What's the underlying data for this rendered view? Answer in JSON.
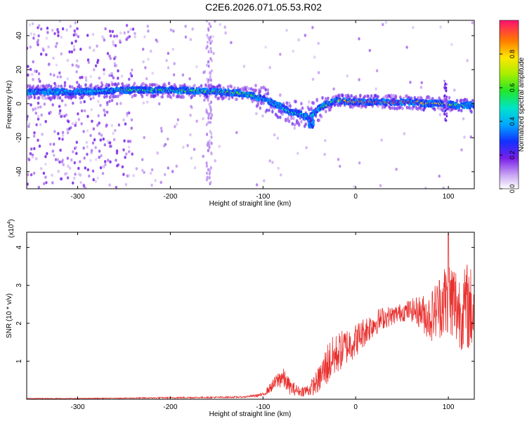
{
  "title": "C2E6.2026.071.05.53.R02",
  "chart_data": [
    {
      "type": "heatmap",
      "xlabel": "Height of straight line (km)",
      "ylabel": "Frequency (Hz)",
      "xlim": [
        -355,
        128
      ],
      "ylim": [
        -50,
        49
      ],
      "xticks": [
        -300,
        -200,
        -100,
        0,
        100
      ],
      "yticks": [
        -40,
        -20,
        0,
        20,
        40
      ],
      "colorbar": {
        "label": "Normalized spectral amplitude",
        "range": [
          0,
          1
        ],
        "ticks": [
          0.0,
          0.2,
          0.4,
          0.6,
          0.8
        ],
        "tick_labels": [
          "0.0",
          "0.2",
          "0.4",
          "0.6",
          "0.8"
        ]
      },
      "ridge_frequency": {
        "x": [
          -350,
          -300,
          -250,
          -200,
          -150,
          -120,
          -100,
          -80,
          -70,
          -60,
          -50,
          -40,
          -30,
          -20,
          0,
          20,
          40,
          60,
          80,
          100,
          110,
          128
        ],
        "y": [
          7,
          7,
          8,
          8,
          7,
          6,
          3,
          -2,
          -5,
          -6,
          -8,
          -3,
          0,
          2,
          1,
          1,
          1,
          1,
          0,
          0,
          -1,
          -1
        ]
      },
      "ridge_amplitude": {
        "x": [
          -350,
          -300,
          -250,
          -200,
          -150,
          -120,
          -100,
          -80,
          -70,
          -60,
          -50,
          -40,
          -30,
          -20,
          0,
          20,
          40,
          60,
          80,
          100,
          110,
          128
        ],
        "y": [
          0.45,
          0.45,
          0.55,
          0.58,
          0.6,
          0.6,
          0.45,
          0.5,
          0.5,
          0.5,
          0.45,
          0.55,
          0.6,
          0.75,
          0.9,
          0.92,
          0.95,
          0.9,
          0.82,
          0.7,
          0.55,
          0.5
        ]
      }
    },
    {
      "type": "line",
      "xlabel": "Height of straight line (km)",
      "ylabel": "SNR (10 * v/v)",
      "multiplier_label": "(x10",
      "multiplier_exp": "4",
      "multiplier_close": ")",
      "xlim": [
        -355,
        128
      ],
      "ylim": [
        0,
        4.4
      ],
      "xticks": [
        -300,
        -200,
        -100,
        0,
        100
      ],
      "yticks": [
        1,
        2,
        3,
        4
      ],
      "series": [
        {
          "name": "SNR",
          "color": "#e8302e",
          "x": [
            -355,
            -300,
            -250,
            -200,
            -150,
            -120,
            -100,
            -90,
            -80,
            -70,
            -60,
            -50,
            -40,
            -30,
            -20,
            -10,
            0,
            10,
            20,
            30,
            40,
            50,
            60,
            70,
            80,
            90,
            95,
            100,
            105,
            110,
            115,
            120,
            128
          ],
          "y": [
            0.02,
            0.02,
            0.03,
            0.04,
            0.05,
            0.06,
            0.12,
            0.35,
            0.6,
            0.3,
            0.2,
            0.25,
            0.5,
            0.95,
            1.2,
            1.4,
            1.55,
            1.8,
            2.0,
            2.15,
            2.2,
            2.3,
            2.35,
            2.3,
            2.15,
            2.45,
            2.6,
            2.5,
            2.55,
            2.4,
            2.3,
            2.45,
            2.3
          ],
          "noise_amp": [
            0.01,
            0.01,
            0.01,
            0.02,
            0.02,
            0.02,
            0.05,
            0.15,
            0.3,
            0.2,
            0.12,
            0.18,
            0.35,
            0.6,
            0.55,
            0.5,
            0.45,
            0.4,
            0.35,
            0.3,
            0.25,
            0.25,
            0.3,
            0.45,
            0.65,
            0.85,
            1.0,
            1.3,
            1.25,
            1.1,
            1.0,
            1.2,
            1.1
          ],
          "peak": {
            "x": 100,
            "y": 4.35
          }
        }
      ]
    }
  ]
}
